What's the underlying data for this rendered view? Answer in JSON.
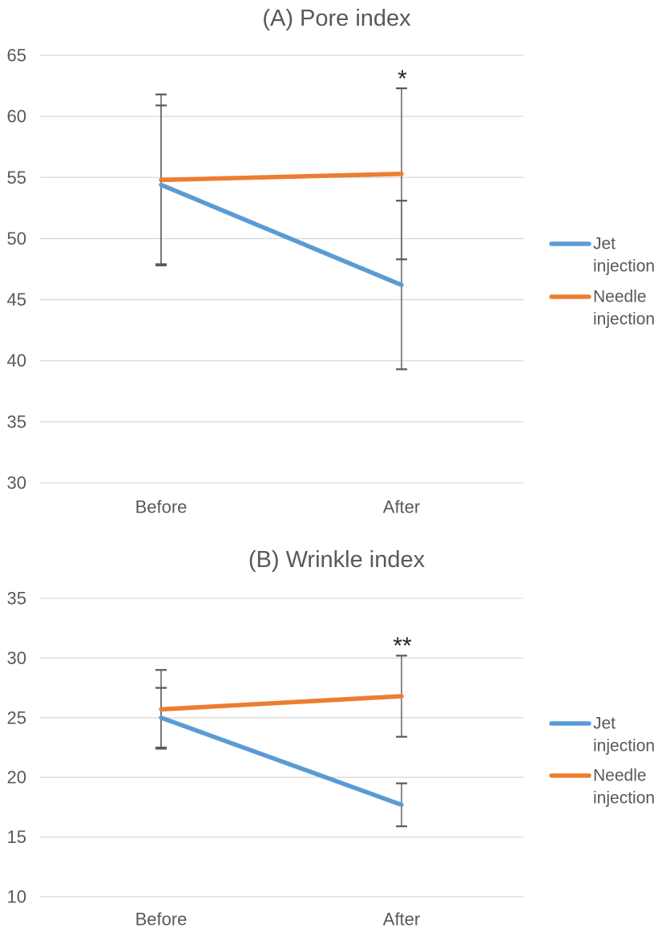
{
  "page": {
    "background": "#ffffff"
  },
  "colors": {
    "series_blue": "#5B9BD5",
    "series_orange": "#ED7D31",
    "grid": "#D9D9D9",
    "text": "#595959",
    "error_bar": "#595959",
    "annotation": "#262626"
  },
  "chart_data": [
    {
      "type": "line",
      "panel": "A",
      "title": "(A) Pore index",
      "categories": [
        "Before",
        "After"
      ],
      "xlabel": "",
      "ylabel": "",
      "ylim": [
        30,
        65
      ],
      "yticks": [
        65,
        60,
        55,
        50,
        45,
        40,
        35,
        30
      ],
      "grid": true,
      "legend_position": "right",
      "series": [
        {
          "name": "Jet injection",
          "color": "#5B9BD5",
          "values": [
            54.4,
            46.2
          ],
          "error": [
            6.5,
            6.9
          ]
        },
        {
          "name": "Needle injection",
          "color": "#ED7D31",
          "values": [
            54.8,
            55.3
          ],
          "error": [
            7.0,
            7.0
          ]
        }
      ],
      "annotations": [
        {
          "text": "*",
          "category": "After"
        }
      ]
    },
    {
      "type": "line",
      "panel": "B",
      "title": "(B) Wrinkle index",
      "categories": [
        "Before",
        "After"
      ],
      "xlabel": "",
      "ylabel": "",
      "ylim": [
        10,
        35
      ],
      "yticks": [
        35,
        30,
        25,
        20,
        15,
        10
      ],
      "grid": true,
      "legend_position": "right",
      "series": [
        {
          "name": "Jet injection",
          "color": "#5B9BD5",
          "values": [
            25.0,
            17.7
          ],
          "error": [
            2.5,
            1.8
          ]
        },
        {
          "name": "Needle injection",
          "color": "#ED7D31",
          "values": [
            25.7,
            26.8
          ],
          "error": [
            3.3,
            3.4
          ]
        }
      ],
      "annotations": [
        {
          "text": "**",
          "category": "After"
        }
      ]
    }
  ]
}
